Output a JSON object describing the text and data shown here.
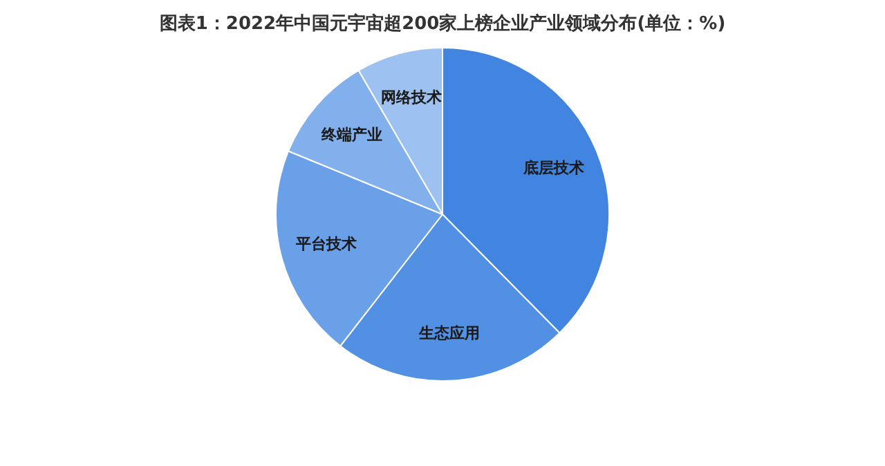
{
  "chart_data": {
    "type": "pie",
    "title": "图表1：2022年中国元宇宙超200家上榜企业产业领域分布(单位：%)",
    "categories": [
      "底层技术",
      "生态应用",
      "平台技术",
      "终端产业",
      "网络技术"
    ],
    "values": [
      37.6,
      22.9,
      20.7,
      10.4,
      8.4
    ],
    "colors": [
      "#4185e0",
      "#5290e3",
      "#6aa0e8",
      "#82b0ec",
      "#9dc1f0"
    ],
    "legend": false
  }
}
